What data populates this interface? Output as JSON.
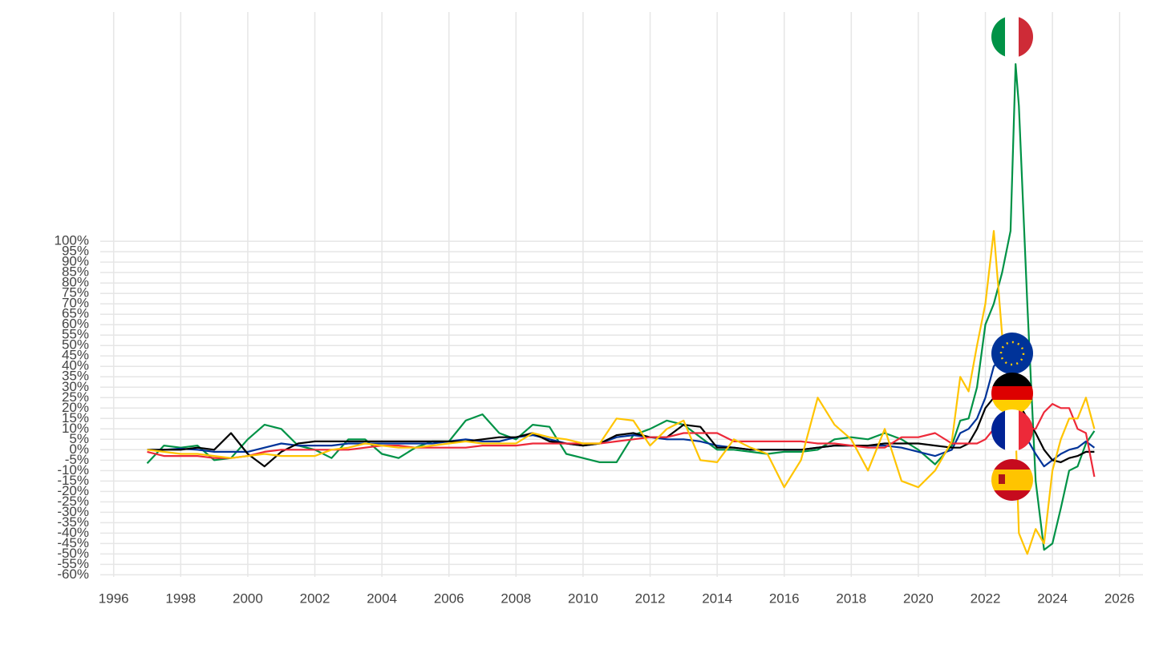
{
  "chart_data": {
    "type": "line",
    "x": [
      1997,
      1997.5,
      1998,
      1998.5,
      1999,
      1999.5,
      2000,
      2000.5,
      2001,
      2001.5,
      2002,
      2002.5,
      2003,
      2003.5,
      2004,
      2004.5,
      2005,
      2005.5,
      2006,
      2006.5,
      2007,
      2007.5,
      2008,
      2008.5,
      2009,
      2009.5,
      2010,
      2010.5,
      2011,
      2011.5,
      2012,
      2012.5,
      2013,
      2013.5,
      2014,
      2014.5,
      2015,
      2015.5,
      2016,
      2016.5,
      2017,
      2017.5,
      2018,
      2018.5,
      2019,
      2019.5,
      2020,
      2020.5,
      2021,
      2021.25,
      2021.5,
      2021.75,
      2022,
      2022.25,
      2022.5,
      2022.75,
      2022.9,
      2023,
      2023.25,
      2023.5,
      2023.75,
      2024,
      2024.25,
      2024.5,
      2024.75,
      2025,
      2025.25
    ],
    "series": [
      {
        "color": "#009246",
        "values": [
          -6.5,
          2,
          1,
          2,
          -5,
          -4,
          5,
          12,
          10,
          2,
          0,
          -4,
          5,
          5,
          -2,
          -4,
          1,
          4,
          4,
          14,
          17,
          8,
          5,
          12,
          11,
          -2,
          -4,
          -6,
          -6,
          7,
          10,
          14,
          12,
          6,
          0,
          0,
          -1,
          -2,
          -1,
          -1,
          0,
          5,
          6,
          5,
          8,
          5,
          0,
          -7,
          2,
          14,
          15,
          30,
          60,
          70,
          85,
          105,
          185,
          165,
          70,
          -15,
          -48,
          -45,
          -28,
          -10,
          -8,
          3,
          9
        ]
      },
      {
        "color": "#003399",
        "values": [
          0,
          0,
          0.5,
          0,
          -1,
          -1,
          -1,
          1,
          3,
          2,
          2,
          2,
          3,
          3,
          3,
          3,
          3,
          3,
          4,
          5,
          4,
          4,
          6,
          7,
          5,
          3,
          2,
          3,
          6,
          7,
          6,
          5,
          5,
          4,
          2,
          1,
          0,
          0,
          0,
          0,
          1,
          2,
          2,
          2,
          2,
          1,
          -1,
          -3,
          0,
          8,
          10,
          15,
          25,
          40,
          45,
          42,
          30,
          15,
          5,
          -2,
          -8,
          -5,
          -2,
          0,
          1,
          4,
          1
        ]
      },
      {
        "color": "#000000",
        "values": [
          0,
          0,
          0,
          1,
          0,
          8,
          -2,
          -8,
          -1,
          3,
          4,
          4,
          4,
          4,
          4,
          4,
          4,
          4,
          4,
          4,
          5,
          6,
          6,
          8,
          4,
          3,
          2,
          3,
          7,
          8,
          6,
          6,
          12,
          11,
          1,
          1,
          0,
          0,
          0,
          0,
          1,
          2,
          2,
          2,
          3,
          3,
          3,
          2,
          1,
          1,
          3,
          10,
          20,
          25,
          30,
          38,
          35,
          22,
          15,
          8,
          0,
          -5,
          -6,
          -4,
          -3,
          -1,
          -1
        ]
      },
      {
        "color": "#ed2939",
        "values": [
          -1,
          -3,
          -3,
          -3,
          -4,
          -4,
          -3,
          -1,
          0,
          0,
          0,
          0,
          0,
          1,
          2,
          2,
          1,
          1,
          1,
          1,
          2,
          2,
          2,
          3,
          3,
          3,
          3,
          3,
          4,
          5,
          6,
          6,
          8,
          8,
          8,
          4,
          4,
          4,
          4,
          4,
          3,
          3,
          2,
          1,
          1,
          6,
          6,
          8,
          3,
          3,
          3,
          3,
          5,
          10,
          15,
          20,
          25,
          15,
          10,
          10,
          18,
          22,
          20,
          20,
          10,
          8,
          -13
        ]
      },
      {
        "color": "#ffc400",
        "values": [
          0,
          -1,
          -2,
          -2,
          -3,
          -4,
          -3,
          -2,
          -3,
          -3,
          -3,
          0,
          1,
          3,
          2,
          1,
          1,
          2,
          3,
          4,
          3,
          3,
          3,
          8,
          6,
          5,
          3,
          3,
          15,
          14,
          2,
          10,
          14,
          -5,
          -6,
          5,
          1,
          -2,
          -18,
          -5,
          25,
          12,
          5,
          -10,
          10,
          -15,
          -18,
          -10,
          4,
          35,
          28,
          50,
          70,
          105,
          55,
          45,
          10,
          -40,
          -50,
          -38,
          -45,
          -10,
          5,
          15,
          15,
          25,
          10
        ]
      }
    ],
    "xlim": [
      1995.6,
      2026.7
    ],
    "ylim": [
      -61,
      210
    ],
    "xticks": [
      1996,
      1998,
      2000,
      2002,
      2004,
      2006,
      2008,
      2010,
      2012,
      2014,
      2016,
      2018,
      2020,
      2022,
      2024,
      2026
    ],
    "yticks": [
      {
        "value": -60,
        "label": "-60%"
      },
      {
        "value": -55,
        "label": "-55%"
      },
      {
        "value": -50,
        "label": "-50%"
      },
      {
        "value": -45,
        "label": "-45%"
      },
      {
        "value": -40,
        "label": "-40%"
      },
      {
        "value": -35,
        "label": "-35%"
      },
      {
        "value": -30,
        "label": "-30%"
      },
      {
        "value": -25,
        "label": "-25%"
      },
      {
        "value": -20,
        "label": "-20%"
      },
      {
        "value": -15,
        "label": "-15%"
      },
      {
        "value": -10,
        "label": "-10%"
      },
      {
        "value": -5,
        "label": "-5%"
      },
      {
        "value": 0,
        "label": "0%"
      },
      {
        "value": 5,
        "label": "5%"
      },
      {
        "value": 10,
        "label": "10%"
      },
      {
        "value": 15,
        "label": "15%"
      },
      {
        "value": 20,
        "label": "20%"
      },
      {
        "value": 25,
        "label": "25%"
      },
      {
        "value": 30,
        "label": "30%"
      },
      {
        "value": 35,
        "label": "35%"
      },
      {
        "value": 40,
        "label": "40%"
      },
      {
        "value": 45,
        "label": "45%"
      },
      {
        "value": 50,
        "label": "50%"
      },
      {
        "value": 55,
        "label": "55%"
      },
      {
        "value": 60,
        "label": "60%"
      },
      {
        "value": 65,
        "label": "65%"
      },
      {
        "value": 70,
        "label": "70%"
      },
      {
        "value": 75,
        "label": "75%"
      },
      {
        "value": 80,
        "label": "80%"
      },
      {
        "value": 85,
        "label": "85%"
      },
      {
        "value": 90,
        "label": "90%"
      },
      {
        "value": 95,
        "label": "95%"
      },
      {
        "value": 100,
        "label": "100%"
      }
    ],
    "grid": true
  }
}
